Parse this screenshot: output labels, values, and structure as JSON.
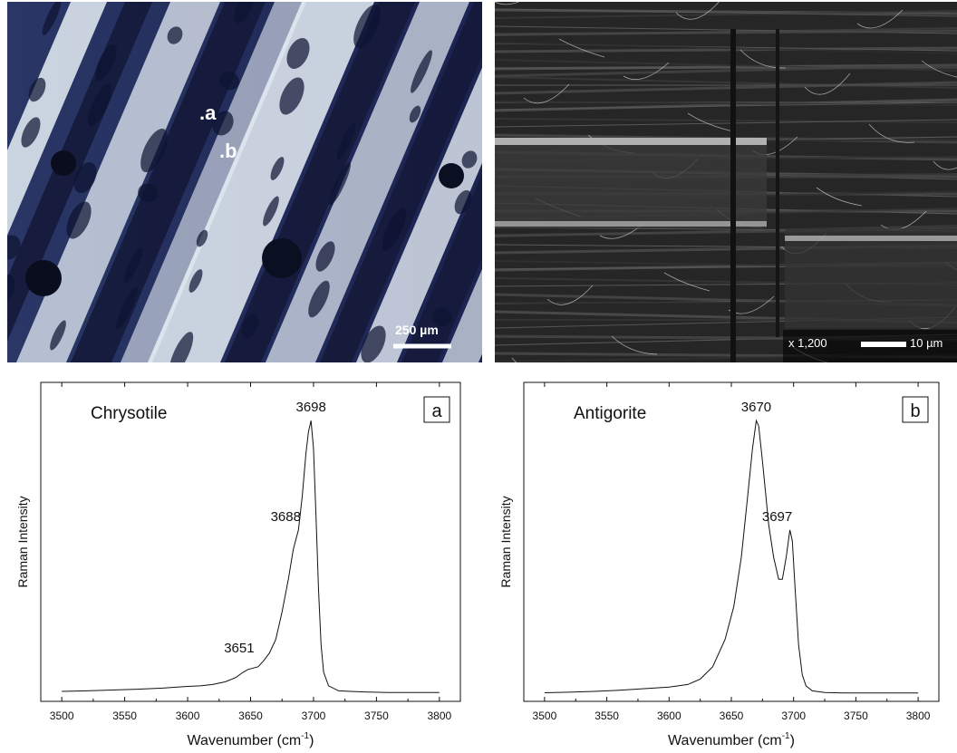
{
  "images": {
    "optical": {
      "point_labels": [
        ".a",
        ".b"
      ],
      "scale_bar_text": "250 µm"
    },
    "sem": {
      "magnification": "x 1,200",
      "scale_bar_text": "10 µm"
    }
  },
  "colors": {
    "line": "#111111",
    "micro_dark": "#151a3a",
    "micro_light": "#e6eef6",
    "sem_dark": "#1a1a1a",
    "sem_light": "#d8d8d8"
  },
  "chart_data": [
    {
      "type": "line",
      "panel_label": "a",
      "mineral": "Chrysotile",
      "xlabel": "Wavenumber (cm",
      "xlabel_sup": "-1",
      "xlabel_end": ")",
      "ylabel": "Raman Intensity",
      "xlim": [
        3500,
        3800
      ],
      "xticks": [
        3500,
        3550,
        3600,
        3650,
        3700,
        3750,
        3800
      ],
      "ylim": [
        0,
        1.1
      ],
      "peak_labels": [
        {
          "text": "3698",
          "x": 3698,
          "y": 1.0
        },
        {
          "text": "3688",
          "x": 3688,
          "y": 0.6
        },
        {
          "text": "3651",
          "x": 3651,
          "y": 0.12
        }
      ],
      "series": [
        {
          "x": [
            3500,
            3520,
            3540,
            3560,
            3580,
            3600,
            3610,
            3620,
            3630,
            3638,
            3644,
            3648,
            3652,
            3656,
            3660,
            3665,
            3670,
            3675,
            3680,
            3684,
            3688,
            3691,
            3694,
            3696,
            3698,
            3700,
            3702,
            3704,
            3706,
            3708,
            3712,
            3720,
            3740,
            3760,
            3780,
            3800
          ],
          "values": [
            0.01,
            0.012,
            0.015,
            0.018,
            0.022,
            0.028,
            0.03,
            0.035,
            0.045,
            0.06,
            0.08,
            0.09,
            0.095,
            0.1,
            0.12,
            0.15,
            0.2,
            0.3,
            0.42,
            0.53,
            0.6,
            0.72,
            0.88,
            0.96,
            1.0,
            0.9,
            0.65,
            0.38,
            0.18,
            0.08,
            0.03,
            0.012,
            0.008,
            0.006,
            0.006,
            0.006
          ]
        }
      ]
    },
    {
      "type": "line",
      "panel_label": "b",
      "mineral": "Antigorite",
      "xlabel": "Wavenumber (cm",
      "xlabel_sup": "-1",
      "xlabel_end": ")",
      "ylabel": "Raman Intensity",
      "xlim": [
        3500,
        3800
      ],
      "xticks": [
        3500,
        3550,
        3600,
        3650,
        3700,
        3750,
        3800
      ],
      "ylim": [
        0,
        1.1
      ],
      "peak_labels": [
        {
          "text": "3670",
          "x": 3670,
          "y": 1.0
        },
        {
          "text": "3697",
          "x": 3697,
          "y": 0.6
        }
      ],
      "series": [
        {
          "x": [
            3500,
            3520,
            3540,
            3560,
            3580,
            3600,
            3615,
            3625,
            3635,
            3645,
            3652,
            3658,
            3663,
            3667,
            3670,
            3672,
            3675,
            3680,
            3684,
            3688,
            3691,
            3694,
            3697,
            3699,
            3701,
            3704,
            3707,
            3710,
            3715,
            3725,
            3740,
            3760,
            3780,
            3800
          ],
          "values": [
            0.005,
            0.007,
            0.01,
            0.014,
            0.02,
            0.026,
            0.035,
            0.055,
            0.1,
            0.2,
            0.32,
            0.5,
            0.72,
            0.9,
            1.0,
            0.98,
            0.85,
            0.62,
            0.5,
            0.42,
            0.42,
            0.5,
            0.6,
            0.56,
            0.4,
            0.18,
            0.07,
            0.03,
            0.012,
            0.006,
            0.004,
            0.004,
            0.004,
            0.004
          ]
        }
      ]
    }
  ]
}
